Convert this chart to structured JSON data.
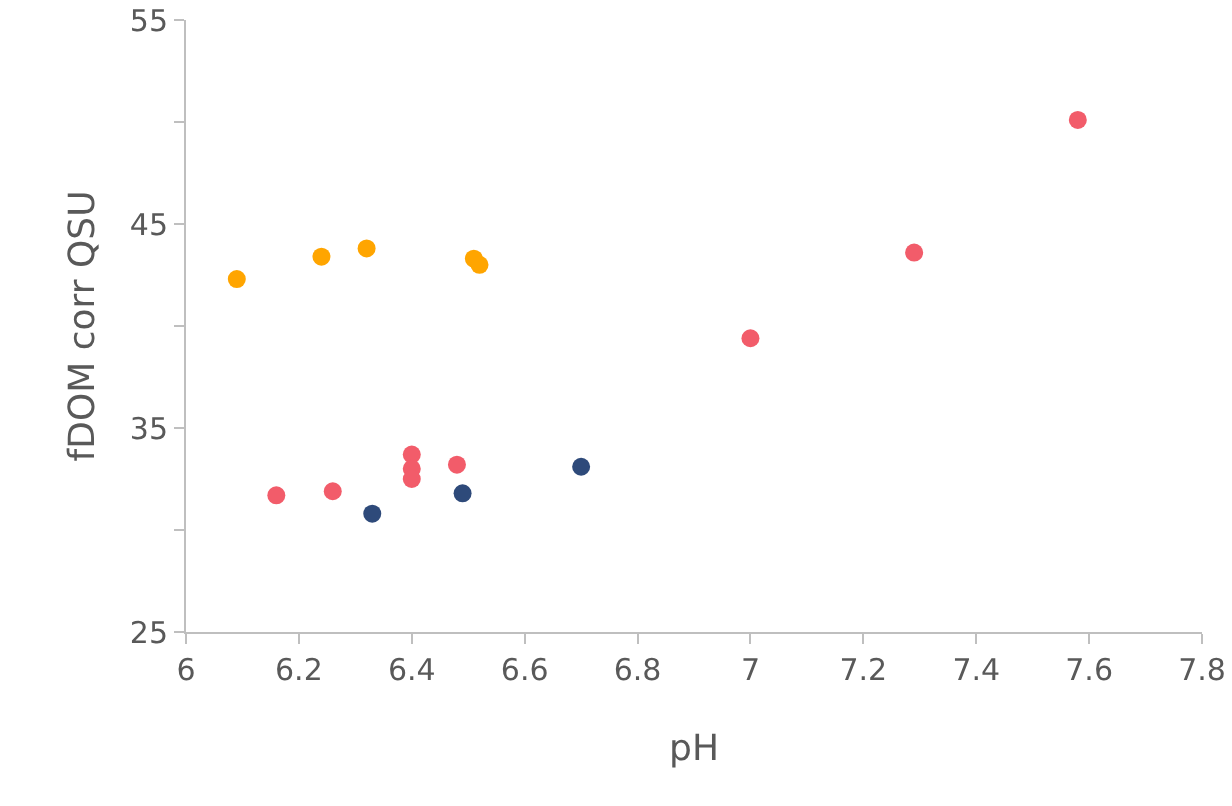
{
  "chart_data": {
    "type": "scatter",
    "xlabel": "pH",
    "ylabel": "fDOM corr QSU",
    "xlim": [
      6,
      7.8
    ],
    "xticks": [
      6,
      6.2,
      6.4,
      6.6,
      6.8,
      7,
      7.2,
      7.4,
      7.6,
      7.8
    ],
    "ylim": [
      25,
      55
    ],
    "yticks": [
      25,
      {
        "value": 30,
        "label": null
      },
      35,
      {
        "value": 40,
        "label": null
      },
      45,
      {
        "value": 50,
        "label": null
      },
      55
    ],
    "grid": false,
    "marker": "circle",
    "series": [
      {
        "color": "#ffa500",
        "x": [
          6.09,
          6.24,
          6.32,
          6.51,
          6.52
        ],
        "values": [
          42.3,
          43.4,
          43.8,
          43.3,
          43.0
        ]
      },
      {
        "color": "#f25c6a",
        "x": [
          6.16,
          6.26,
          6.4,
          6.4,
          6.4,
          6.48,
          7.0,
          7.29,
          7.58
        ],
        "values": [
          31.7,
          31.9,
          33.7,
          33.0,
          32.5,
          33.2,
          39.4,
          43.6,
          50.1
        ]
      },
      {
        "color": "#2e4a7a",
        "x": [
          6.33,
          6.49,
          6.7
        ],
        "values": [
          30.8,
          31.8,
          33.1
        ]
      }
    ]
  }
}
